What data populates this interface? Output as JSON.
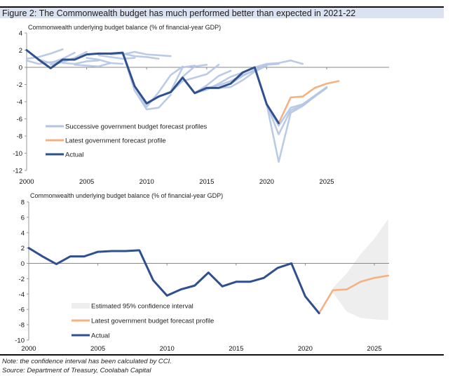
{
  "figure": {
    "title": "Figure 2: The Commonwealth budget has much performed better than expected in 2021-22",
    "note": "Note: the confidence interval has been calculated by CCI.",
    "source": "Source: Department of Treasury, Coolabah Capital"
  },
  "colors": {
    "actual": "#2f4f8f",
    "successive": "#b4c5e4",
    "latest": "#f4b183",
    "ci": "#eeeeee",
    "title_bg": "#dbe3f2"
  },
  "chart_data": [
    {
      "type": "line",
      "title": "Commonwealth underlying  budget balance (% of financial-year GDP)",
      "xlabel": "",
      "ylabel": "",
      "xlim": [
        2000,
        2027
      ],
      "ylim": [
        -12,
        4
      ],
      "yticks": [
        4,
        2,
        0,
        -2,
        -4,
        -6,
        -8,
        -10,
        -12
      ],
      "xticks": [
        2000,
        2005,
        2010,
        2015,
        2020,
        2025
      ],
      "legend": {
        "position": "bottom-left",
        "entries": [
          {
            "label": "Successive government budget forecast profiles",
            "series": "successive"
          },
          {
            "label": "Latest government forecast profile",
            "series": "latest"
          },
          {
            "label": "Actual",
            "series": "actual"
          }
        ]
      },
      "series": [
        {
          "name": "Actual",
          "key": "actual",
          "x": [
            2000,
            2001,
            2002,
            2003,
            2004,
            2005,
            2006,
            2007,
            2008,
            2009,
            2010,
            2011,
            2012,
            2013,
            2014,
            2015,
            2016,
            2017,
            2018,
            2019,
            2020,
            2021
          ],
          "values": [
            2.0,
            0.9,
            -0.1,
            0.9,
            0.9,
            1.5,
            1.6,
            1.6,
            1.7,
            -2.2,
            -4.2,
            -3.4,
            -2.9,
            -1.2,
            -3.0,
            -2.4,
            -2.4,
            -1.9,
            -0.6,
            0.0,
            -4.3,
            -6.5
          ]
        },
        {
          "name": "Latest government forecast profile",
          "key": "latest",
          "x": [
            2021,
            2022,
            2023,
            2024,
            2025,
            2026
          ],
          "values": [
            -6.5,
            -3.5,
            -3.4,
            -2.4,
            -1.9,
            -1.6
          ]
        },
        {
          "name": "Successive forecast 1",
          "key": "successive",
          "x": [
            2000,
            2001,
            2002,
            2003
          ],
          "values": [
            1.0,
            1.2,
            1.6,
            2.1
          ]
        },
        {
          "name": "Successive forecast 2",
          "key": "successive",
          "x": [
            2000,
            2001,
            2002,
            2003
          ],
          "values": [
            0.8,
            0.4,
            0.6,
            0.7
          ]
        },
        {
          "name": "Successive forecast 3",
          "key": "successive",
          "x": [
            2001,
            2002,
            2003,
            2004
          ],
          "values": [
            0.9,
            0.5,
            1.0,
            1.7
          ]
        },
        {
          "name": "Successive forecast 4",
          "key": "successive",
          "x": [
            2002,
            2003,
            2004,
            2005
          ],
          "values": [
            0.3,
            0.6,
            1.1,
            1.8
          ]
        },
        {
          "name": "Successive forecast 5",
          "key": "successive",
          "x": [
            2003,
            2004,
            2005,
            2006
          ],
          "values": [
            0.5,
            0.4,
            0.7,
            0.8
          ]
        },
        {
          "name": "Successive forecast 6",
          "key": "successive",
          "x": [
            2004,
            2005,
            2006,
            2007
          ],
          "values": [
            0.3,
            0.2,
            0.1,
            0.5
          ]
        },
        {
          "name": "Successive forecast 7",
          "key": "successive",
          "x": [
            2005,
            2006,
            2007,
            2008
          ],
          "values": [
            1.1,
            0.9,
            0.5,
            0.4
          ]
        },
        {
          "name": "Successive forecast 8",
          "key": "successive",
          "x": [
            2006,
            2007,
            2008,
            2009
          ],
          "values": [
            1.4,
            1.2,
            1.0,
            1.1
          ]
        },
        {
          "name": "Successive forecast 9",
          "key": "successive",
          "x": [
            2007,
            2008,
            2009,
            2010,
            2011
          ],
          "values": [
            1.5,
            1.6,
            1.3,
            1.2,
            1.0
          ]
        },
        {
          "name": "Successive forecast 10",
          "key": "successive",
          "x": [
            2008,
            2009,
            2010,
            2011,
            2012
          ],
          "values": [
            1.5,
            1.8,
            1.5,
            1.4,
            1.3
          ]
        },
        {
          "name": "Successive forecast 11",
          "key": "successive",
          "x": [
            2008,
            2009,
            2010,
            2011,
            2012
          ],
          "values": [
            1.7,
            -2.7,
            -4.9,
            -4.7,
            -3.2
          ]
        },
        {
          "name": "Successive forecast 12",
          "key": "successive",
          "x": [
            2009,
            2010,
            2011,
            2012,
            2013
          ],
          "values": [
            -2.2,
            -4.6,
            -2.9,
            -0.9,
            0.1
          ]
        },
        {
          "name": "Successive forecast 13",
          "key": "successive",
          "x": [
            2010,
            2011,
            2012,
            2013,
            2014
          ],
          "values": [
            -4.2,
            -3.4,
            -2.8,
            0.0,
            0.2
          ]
        },
        {
          "name": "Successive forecast 14",
          "key": "successive",
          "x": [
            2011,
            2012,
            2013,
            2014,
            2015
          ],
          "values": [
            -3.4,
            -2.9,
            -1.1,
            0.1,
            0.3
          ]
        },
        {
          "name": "Successive forecast 15",
          "key": "successive",
          "x": [
            2012,
            2013,
            2014,
            2015,
            2016
          ],
          "values": [
            -2.9,
            -1.6,
            -1.2,
            -0.8,
            0.3
          ]
        },
        {
          "name": "Successive forecast 16",
          "key": "successive",
          "x": [
            2013,
            2014,
            2015,
            2016,
            2017
          ],
          "values": [
            -1.2,
            -3.0,
            -2.1,
            -1.0,
            -0.4
          ]
        },
        {
          "name": "Successive forecast 17",
          "key": "successive",
          "x": [
            2014,
            2015,
            2016,
            2017,
            2018
          ],
          "values": [
            -3.0,
            -2.6,
            -1.9,
            -1.1,
            -0.6
          ]
        },
        {
          "name": "Successive forecast 18",
          "key": "successive",
          "x": [
            2015,
            2016,
            2017,
            2018,
            2019
          ],
          "values": [
            -2.4,
            -2.1,
            -1.6,
            -0.9,
            -0.4
          ]
        },
        {
          "name": "Successive forecast 19",
          "key": "successive",
          "x": [
            2016,
            2017,
            2018,
            2019,
            2020
          ],
          "values": [
            -2.4,
            -2.3,
            -1.5,
            -0.5,
            0.2
          ]
        },
        {
          "name": "Successive forecast 20",
          "key": "successive",
          "x": [
            2017,
            2018,
            2019,
            2020,
            2021
          ],
          "values": [
            -1.9,
            -1.0,
            -0.3,
            0.3,
            0.4
          ]
        },
        {
          "name": "Successive forecast 21",
          "key": "successive",
          "x": [
            2018,
            2019,
            2020,
            2021,
            2022,
            2023
          ],
          "values": [
            -0.6,
            0.0,
            0.4,
            0.5,
            0.8,
            0.4
          ]
        },
        {
          "name": "Successive forecast 22",
          "key": "successive",
          "x": [
            2019,
            2020,
            2021,
            2022,
            2023,
            2024
          ],
          "values": [
            0.0,
            -4.3,
            -11.0,
            -5.3,
            -4.5,
            -3.4
          ]
        },
        {
          "name": "Successive forecast 23",
          "key": "successive",
          "x": [
            2020,
            2021,
            2022,
            2023,
            2024,
            2025
          ],
          "values": [
            -4.3,
            -7.8,
            -5.0,
            -4.4,
            -3.4,
            -2.4
          ]
        },
        {
          "name": "Successive forecast 24",
          "key": "successive",
          "x": [
            2020,
            2021,
            2022,
            2023,
            2024,
            2025
          ],
          "values": [
            -4.3,
            -6.8,
            -4.7,
            -4.3,
            -3.3,
            -2.3
          ]
        }
      ]
    },
    {
      "type": "line",
      "title": "Commonwealth underlying  budget balance (% of financial-year GDP)",
      "xlabel": "",
      "ylabel": "",
      "xlim": [
        2000,
        2026
      ],
      "ylim": [
        -10,
        8
      ],
      "yticks": [
        8,
        6,
        4,
        2,
        0,
        -2,
        -4,
        -6,
        -8,
        -10
      ],
      "xticks": [
        2000,
        2005,
        2010,
        2015,
        2020,
        2025
      ],
      "legend": {
        "position": "bottom-left",
        "entries": [
          {
            "label": "Estimated 95% confidence interval",
            "series": "ci"
          },
          {
            "label": "Latest government budget forecast profile",
            "series": "latest"
          },
          {
            "label": "Actual",
            "series": "actual"
          }
        ]
      },
      "series": [
        {
          "name": "Actual",
          "key": "actual",
          "x": [
            2000,
            2001,
            2002,
            2003,
            2004,
            2005,
            2006,
            2007,
            2008,
            2009,
            2010,
            2011,
            2012,
            2013,
            2014,
            2015,
            2016,
            2017,
            2018,
            2019,
            2020,
            2021
          ],
          "values": [
            2.0,
            0.9,
            -0.1,
            0.9,
            0.9,
            1.5,
            1.6,
            1.6,
            1.7,
            -2.2,
            -4.2,
            -3.4,
            -2.9,
            -1.2,
            -3.0,
            -2.4,
            -2.4,
            -1.9,
            -0.6,
            0.0,
            -4.3,
            -6.5
          ]
        },
        {
          "name": "Latest government budget forecast profile",
          "key": "latest",
          "x": [
            2021,
            2022,
            2023,
            2024,
            2025,
            2026
          ],
          "values": [
            -6.5,
            -3.5,
            -3.4,
            -2.4,
            -1.9,
            -1.6
          ]
        }
      ],
      "band": {
        "name": "Estimated 95% confidence interval",
        "x": [
          2022,
          2023,
          2024,
          2025,
          2026
        ],
        "upper": [
          -3.2,
          -1.3,
          1.2,
          3.2,
          5.8
        ],
        "lower": [
          -3.8,
          -6.3,
          -7.1,
          -7.3,
          -7.4
        ]
      }
    }
  ]
}
